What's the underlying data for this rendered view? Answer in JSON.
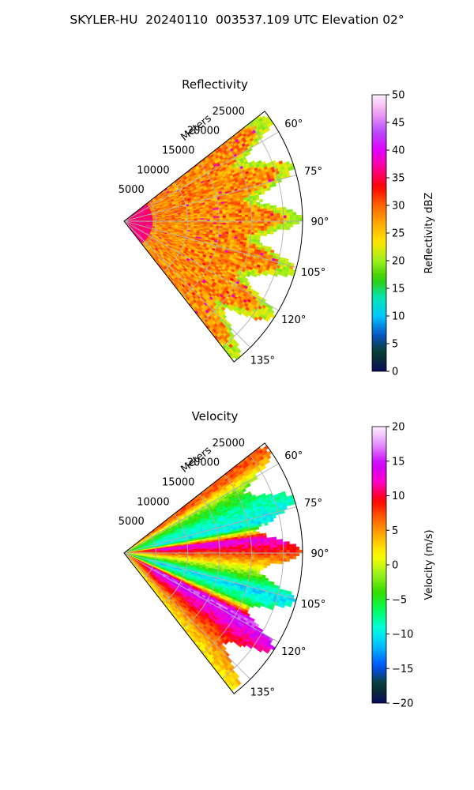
{
  "figure_title": "SKYLER-HU  20240110  003537.109 UTC Elevation 02°",
  "chart_data": [
    {
      "type": "heatmap",
      "title": "Reflectivity",
      "projection": "polar sector (PPI)",
      "range_label": "Meters",
      "range_ticks": [
        5000,
        10000,
        15000,
        20000,
        25000
      ],
      "range_tick_labels": [
        "5000",
        "10000",
        "15000",
        "20000",
        "25000"
      ],
      "range_max": 28000,
      "azimuth_ticks": [
        60,
        75,
        90,
        105,
        120,
        135
      ],
      "azimuth_tick_labels": [
        "60°",
        "75°",
        "90°",
        "105°",
        "120°",
        "135°"
      ],
      "azimuth_range": [
        52,
        142
      ],
      "grid": true,
      "colorbar": {
        "label": "Reflectivity dBZ",
        "min": 0,
        "max": 50,
        "ticks": [
          0,
          5,
          10,
          15,
          20,
          25,
          30,
          35,
          40,
          45,
          50
        ],
        "tick_labels": [
          "0",
          "5",
          "10",
          "15",
          "20",
          "25",
          "30",
          "35",
          "40",
          "45",
          "50"
        ],
        "colormap": "pyart_HomeyerRainbow"
      },
      "field": {
        "background_value": 28,
        "near_range_value": 36,
        "near_range_extent_m": 4500,
        "edge_value": 21
      }
    },
    {
      "type": "heatmap",
      "title": "Velocity",
      "projection": "polar sector (PPI)",
      "range_label": "Meters",
      "range_ticks": [
        5000,
        10000,
        15000,
        20000,
        25000
      ],
      "range_tick_labels": [
        "5000",
        "10000",
        "15000",
        "20000",
        "25000"
      ],
      "range_max": 28000,
      "azimuth_ticks": [
        60,
        75,
        90,
        105,
        120,
        135
      ],
      "azimuth_tick_labels": [
        "60°",
        "75°",
        "90°",
        "105°",
        "120°",
        "135°"
      ],
      "azimuth_range": [
        52,
        142
      ],
      "grid": true,
      "colorbar": {
        "label": "Velocity (m/s)",
        "min": -20,
        "max": 20,
        "ticks": [
          -20,
          -15,
          -10,
          -5,
          0,
          5,
          10,
          15,
          20
        ],
        "tick_labels": [
          "−20",
          "−15",
          "−10",
          "−5",
          "0",
          "5",
          "10",
          "15",
          "20"
        ],
        "colormap": "pyart_BuDRd18"
      },
      "field": {
        "azimuth_bands": [
          {
            "azimuth": 55,
            "value": 7
          },
          {
            "azimuth": 62,
            "value": -3
          },
          {
            "azimuth": 70,
            "value": -8
          },
          {
            "azimuth": 78,
            "value": -10
          },
          {
            "azimuth": 84,
            "value": 14
          },
          {
            "azimuth": 89,
            "value": 9
          },
          {
            "azimuth": 94,
            "value": 4
          },
          {
            "azimuth": 100,
            "value": -3
          },
          {
            "azimuth": 106,
            "value": -11
          },
          {
            "azimuth": 112,
            "value": -6
          },
          {
            "azimuth": 118,
            "value": 16
          },
          {
            "azimuth": 126,
            "value": 11
          },
          {
            "azimuth": 134,
            "value": 6
          },
          {
            "azimuth": 141,
            "value": 2
          }
        ]
      }
    }
  ],
  "colors": {
    "grid": "#b0b0b0",
    "axis": "#000000",
    "reflectivity_stops": [
      "#0a0a5c",
      "#0a3c28",
      "#0a55c8",
      "#00c8ff",
      "#00e6b4",
      "#33cc00",
      "#9cf01e",
      "#ffe600",
      "#ffaa00",
      "#ff6400",
      "#ff0000",
      "#ff0090",
      "#e100ff",
      "#b44cff",
      "#f0a0f0",
      "#fff0ff"
    ],
    "velocity_stops": [
      "#0a0a5c",
      "#0a3c28",
      "#0050ff",
      "#00b4ff",
      "#00ffe6",
      "#00ff64",
      "#33dd00",
      "#9cf01e",
      "#ffff00",
      "#ffb400",
      "#ff6400",
      "#ff0000",
      "#ff00c8",
      "#c800ff",
      "#e690ff",
      "#fff0ff"
    ]
  }
}
